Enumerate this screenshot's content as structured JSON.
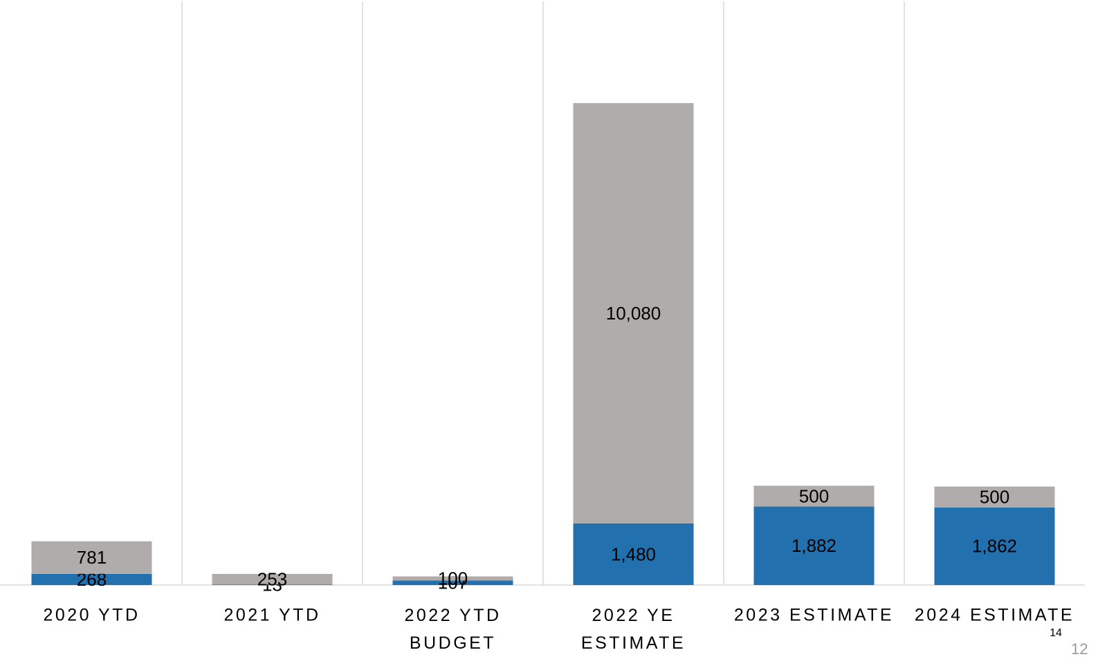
{
  "chart_data": {
    "type": "stacked_bar",
    "categories": [
      "2020 YTD",
      "2021 YTD",
      "2022 YTD\nBUDGET",
      "2022 YE\nESTIMATE",
      "2023 ESTIMATE",
      "2024 ESTIMATE"
    ],
    "series": [
      {
        "color": "#2270ad",
        "values": [
          268,
          13,
          107,
          1480,
          1882,
          1862
        ],
        "value_labels": [
          "268",
          "13",
          "107",
          "1,480",
          "1,882",
          "1,862"
        ]
      },
      {
        "color": "#afacab",
        "values": [
          781,
          253,
          100,
          10080,
          500,
          500
        ],
        "value_labels": [
          "781",
          "253",
          "100",
          "10,080",
          "500",
          "500"
        ]
      }
    ],
    "ylim": [
      0,
      14000
    ],
    "annotations": [
      "14",
      "12"
    ]
  }
}
